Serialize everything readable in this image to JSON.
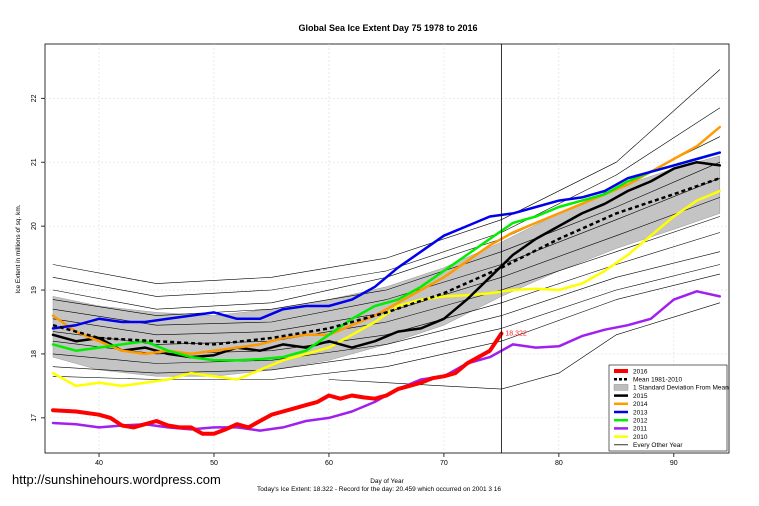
{
  "url": "http://sunshinehours.wordpress.com",
  "chart_data": {
    "type": "line",
    "title": "Global Sea Ice Extent Day 75 1978 to 2016",
    "xlabel": "Day of Year",
    "ylabel": "Ice Extent in millions of sq. km.",
    "xlim": [
      35.3,
      94.8
    ],
    "ylim": [
      16.45,
      22.85
    ],
    "x_ticks": [
      40,
      50,
      60,
      70,
      80,
      90
    ],
    "y_ticks": [
      17,
      18,
      19,
      20,
      21,
      22
    ],
    "vline_day": 75,
    "current_value": 18.322,
    "current_label": "18.322",
    "footnote": "Today's Ice Extent: 18.322  - Record for the day: 20.459 which occurred on 2001 3 16",
    "legend": [
      {
        "label": "2016",
        "color": "#ff0000",
        "kind": "line",
        "width": 4
      },
      {
        "label": "Mean 1981-2010",
        "color": "#000000",
        "kind": "dashed",
        "width": 2.5
      },
      {
        "label": "1 Standard Deviation From Mean",
        "color": "#bdbdbd",
        "kind": "box"
      },
      {
        "label": "2015",
        "color": "#000000",
        "kind": "line",
        "width": 2.5
      },
      {
        "label": "2014",
        "color": "#ff9a00",
        "kind": "line",
        "width": 2.5
      },
      {
        "label": "2013",
        "color": "#0000ee",
        "kind": "line",
        "width": 2.5
      },
      {
        "label": "2012",
        "color": "#00ee00",
        "kind": "line",
        "width": 2.5
      },
      {
        "label": "2011",
        "color": "#a020f0",
        "kind": "line",
        "width": 2.5
      },
      {
        "label": "2010",
        "color": "#ffff00",
        "kind": "line",
        "width": 2.5
      },
      {
        "label": "Every Other Year",
        "color": "#000000",
        "kind": "line",
        "width": 0.8
      }
    ],
    "band": {
      "x": [
        36,
        40,
        45,
        50,
        55,
        60,
        65,
        70,
        75,
        80,
        85,
        90,
        94
      ],
      "upper": [
        18.9,
        18.75,
        18.65,
        18.6,
        18.7,
        18.85,
        19.05,
        19.35,
        19.75,
        20.2,
        20.6,
        20.9,
        21.1
      ],
      "lower": [
        17.95,
        17.75,
        17.65,
        17.65,
        17.75,
        17.9,
        18.15,
        18.45,
        18.9,
        19.3,
        19.65,
        19.95,
        20.2
      ]
    },
    "mean": {
      "x": [
        36,
        40,
        45,
        50,
        55,
        60,
        65,
        70,
        75,
        80,
        85,
        90,
        94
      ],
      "y": [
        18.45,
        18.25,
        18.2,
        18.15,
        18.25,
        18.4,
        18.65,
        18.95,
        19.35,
        19.8,
        20.2,
        20.5,
        20.75
      ]
    },
    "series": [
      {
        "name": "Every Other Year",
        "color": "#000000",
        "width": 0.6,
        "x": [
          36,
          45,
          55,
          65,
          75,
          85,
          94
        ],
        "y": [
          19.4,
          19.1,
          19.2,
          19.5,
          20.1,
          21.0,
          22.45
        ]
      },
      {
        "name": "Every Other Year",
        "color": "#000000",
        "width": 0.6,
        "x": [
          36,
          45,
          55,
          65,
          75,
          85,
          94
        ],
        "y": [
          19.2,
          18.9,
          19.0,
          19.3,
          19.9,
          20.8,
          21.85
        ]
      },
      {
        "name": "Every Other Year",
        "color": "#000000",
        "width": 0.6,
        "x": [
          36,
          45,
          55,
          65,
          75,
          85,
          94
        ],
        "y": [
          19.0,
          18.7,
          18.8,
          19.2,
          19.8,
          20.6,
          21.4
        ]
      },
      {
        "name": "Every Other Year",
        "color": "#000000",
        "width": 0.6,
        "x": [
          36,
          45,
          55,
          65,
          75,
          85,
          94
        ],
        "y": [
          18.85,
          18.6,
          18.7,
          19.0,
          19.6,
          20.3,
          21.0
        ]
      },
      {
        "name": "Every Other Year",
        "color": "#000000",
        "width": 0.6,
        "x": [
          36,
          45,
          55,
          65,
          75,
          85,
          94
        ],
        "y": [
          18.7,
          18.45,
          18.5,
          18.85,
          19.4,
          20.1,
          20.75
        ]
      },
      {
        "name": "Every Other Year",
        "color": "#000000",
        "width": 0.6,
        "x": [
          36,
          45,
          55,
          65,
          75,
          85,
          94
        ],
        "y": [
          18.55,
          18.3,
          18.35,
          18.65,
          19.2,
          19.85,
          20.45
        ]
      },
      {
        "name": "Every Other Year",
        "color": "#000000",
        "width": 0.6,
        "x": [
          36,
          45,
          55,
          65,
          75,
          85,
          94
        ],
        "y": [
          18.35,
          18.15,
          18.2,
          18.5,
          19.0,
          19.6,
          20.15
        ]
      },
      {
        "name": "Every Other Year",
        "color": "#000000",
        "width": 0.6,
        "x": [
          36,
          45,
          55,
          65,
          75,
          85,
          94
        ],
        "y": [
          18.2,
          18.0,
          18.05,
          18.3,
          18.8,
          19.4,
          19.9
        ]
      },
      {
        "name": "Every Other Year",
        "color": "#000000",
        "width": 0.6,
        "x": [
          36,
          45,
          55,
          65,
          75,
          85,
          94
        ],
        "y": [
          18.0,
          17.85,
          17.9,
          18.15,
          18.6,
          19.2,
          19.6
        ]
      },
      {
        "name": "Every Other Year",
        "color": "#000000",
        "width": 0.6,
        "x": [
          36,
          45,
          55,
          65,
          75,
          85,
          94
        ],
        "y": [
          17.8,
          17.7,
          17.75,
          18.0,
          18.4,
          19.0,
          19.4
        ]
      },
      {
        "name": "Every Other Year",
        "color": "#000000",
        "width": 0.6,
        "x": [
          36,
          45,
          55,
          65,
          75,
          85,
          94
        ],
        "y": [
          17.65,
          17.6,
          17.6,
          17.8,
          18.2,
          18.85,
          19.25
        ]
      },
      {
        "name": "Every Other Year",
        "color": "#000000",
        "width": 0.6,
        "x": [
          60,
          65,
          70,
          75,
          80,
          85,
          94
        ],
        "y": [
          17.6,
          17.55,
          17.5,
          17.45,
          17.7,
          18.3,
          18.8
        ]
      },
      {
        "name": "2011",
        "color": "#a020f0",
        "width": 2.5,
        "x": [
          36,
          38,
          40,
          42,
          44,
          46,
          48,
          50,
          52,
          54,
          56,
          58,
          60,
          62,
          64,
          66,
          68,
          70,
          72,
          74,
          76,
          78,
          80,
          82,
          84,
          86,
          88,
          90,
          92,
          94
        ],
        "y": [
          16.92,
          16.9,
          16.85,
          16.88,
          16.9,
          16.85,
          16.82,
          16.85,
          16.85,
          16.8,
          16.85,
          16.95,
          17.0,
          17.1,
          17.25,
          17.45,
          17.6,
          17.65,
          17.85,
          17.95,
          18.15,
          18.1,
          18.12,
          18.28,
          18.38,
          18.45,
          18.55,
          18.85,
          18.98,
          18.9
        ]
      },
      {
        "name": "2010",
        "color": "#ffff00",
        "width": 2.5,
        "x": [
          36,
          38,
          40,
          42,
          44,
          46,
          48,
          50,
          52,
          54,
          56,
          58,
          60,
          62,
          64,
          66,
          68,
          70,
          72,
          74,
          76,
          78,
          80,
          82,
          84,
          86,
          88,
          90,
          92,
          94
        ],
        "y": [
          17.7,
          17.5,
          17.55,
          17.5,
          17.55,
          17.6,
          17.7,
          17.65,
          17.6,
          17.75,
          17.9,
          18.0,
          18.1,
          18.3,
          18.5,
          18.75,
          18.85,
          18.9,
          18.92,
          18.95,
          19.0,
          19.02,
          19.0,
          19.1,
          19.3,
          19.55,
          19.85,
          20.15,
          20.4,
          20.55
        ]
      },
      {
        "name": "2015",
        "color": "#000000",
        "width": 2.5,
        "x": [
          36,
          38,
          40,
          42,
          44,
          46,
          48,
          50,
          52,
          54,
          56,
          58,
          60,
          62,
          64,
          66,
          68,
          70,
          72,
          74,
          76,
          78,
          80,
          82,
          84,
          86,
          88,
          90,
          92,
          94
        ],
        "y": [
          18.3,
          18.2,
          18.25,
          18.05,
          18.1,
          18.0,
          17.95,
          17.98,
          18.1,
          18.05,
          18.15,
          18.1,
          18.2,
          18.1,
          18.2,
          18.35,
          18.4,
          18.55,
          18.85,
          19.2,
          19.55,
          19.8,
          20.0,
          20.2,
          20.35,
          20.55,
          20.7,
          20.9,
          21.0,
          20.95
        ]
      },
      {
        "name": "2014",
        "color": "#ff9a00",
        "width": 2.5,
        "x": [
          36,
          38,
          40,
          42,
          44,
          46,
          48,
          50,
          52,
          54,
          56,
          58,
          60,
          62,
          64,
          66,
          68,
          70,
          72,
          74,
          76,
          78,
          80,
          82,
          84,
          86,
          88,
          90,
          92,
          94
        ],
        "y": [
          18.6,
          18.35,
          18.2,
          18.05,
          18.0,
          18.05,
          18.0,
          18.05,
          18.1,
          18.15,
          18.25,
          18.3,
          18.3,
          18.45,
          18.6,
          18.8,
          19.0,
          19.2,
          19.45,
          19.7,
          19.9,
          20.05,
          20.2,
          20.35,
          20.5,
          20.65,
          20.85,
          21.05,
          21.25,
          21.55
        ]
      },
      {
        "name": "2012",
        "color": "#00ee00",
        "width": 2.5,
        "x": [
          36,
          38,
          40,
          42,
          44,
          46,
          48,
          50,
          52,
          54,
          56,
          58,
          60,
          62,
          64,
          66,
          68,
          70,
          72,
          74,
          76,
          78,
          80,
          82,
          84,
          86,
          88,
          90,
          92,
          94
        ],
        "y": [
          18.15,
          18.05,
          18.1,
          18.15,
          18.2,
          18.05,
          17.95,
          17.9,
          17.9,
          17.92,
          17.95,
          18.05,
          18.3,
          18.55,
          18.75,
          18.85,
          19.05,
          19.3,
          19.55,
          19.8,
          20.05,
          20.15,
          20.3,
          20.4,
          20.5,
          20.7,
          20.85,
          20.95,
          21.05,
          21.15
        ]
      },
      {
        "name": "2013",
        "color": "#0000ee",
        "width": 2.5,
        "x": [
          36,
          38,
          40,
          42,
          44,
          46,
          48,
          50,
          52,
          54,
          56,
          58,
          60,
          62,
          64,
          66,
          68,
          70,
          72,
          74,
          76,
          78,
          80,
          82,
          84,
          86,
          88,
          90,
          92,
          94
        ],
        "y": [
          18.4,
          18.45,
          18.55,
          18.5,
          18.5,
          18.55,
          18.6,
          18.65,
          18.55,
          18.55,
          18.7,
          18.75,
          18.75,
          18.85,
          19.05,
          19.35,
          19.6,
          19.85,
          20.0,
          20.15,
          20.2,
          20.3,
          20.4,
          20.45,
          20.55,
          20.75,
          20.85,
          20.95,
          21.05,
          21.15
        ]
      },
      {
        "name": "2016",
        "color": "#ff0000",
        "width": 4,
        "x": [
          36,
          38,
          40,
          41,
          42,
          43,
          44,
          45,
          46,
          47,
          48,
          49,
          50,
          51,
          52,
          53,
          54,
          55,
          56,
          57,
          58,
          59,
          60,
          61,
          62,
          63,
          64,
          65,
          66,
          67,
          68,
          69,
          70,
          71,
          72,
          73,
          74,
          75
        ],
        "y": [
          17.12,
          17.1,
          17.05,
          17.0,
          16.88,
          16.85,
          16.9,
          16.95,
          16.88,
          16.85,
          16.85,
          16.75,
          16.75,
          16.82,
          16.9,
          16.85,
          16.95,
          17.05,
          17.1,
          17.15,
          17.2,
          17.25,
          17.35,
          17.3,
          17.35,
          17.32,
          17.3,
          17.35,
          17.45,
          17.5,
          17.55,
          17.62,
          17.65,
          17.7,
          17.85,
          17.95,
          18.05,
          18.32
        ]
      }
    ]
  }
}
